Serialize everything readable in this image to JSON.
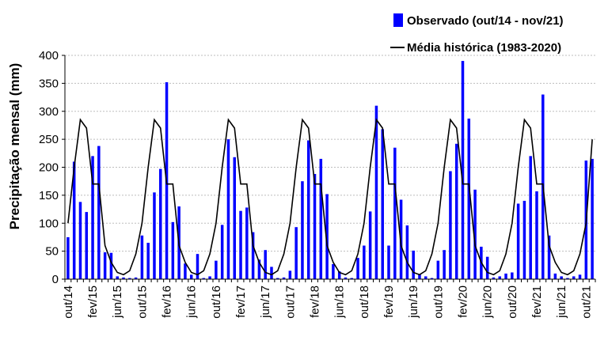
{
  "chart_data": {
    "type": "bar",
    "ylabel": "Precipitação  mensal (mm)",
    "ylim": [
      0,
      400
    ],
    "yticks": [
      0,
      50,
      100,
      150,
      200,
      250,
      300,
      350,
      400
    ],
    "grid": "horizontal dotted",
    "legend_position": "top-right",
    "x_tick_labels": [
      "out/14",
      "fev/15",
      "jun/15",
      "out/15",
      "fev/16",
      "jun/16",
      "out/16",
      "fev/17",
      "jun/17",
      "out/17",
      "fev/18",
      "jun/18",
      "out/18",
      "fev/19",
      "jun/19",
      "out/19",
      "fev/20",
      "jun/20",
      "out/20",
      "fev/21",
      "jun/21",
      "out/21"
    ],
    "series": [
      {
        "name": "Observado (out/14 - nov/21)",
        "kind": "bar",
        "color": "#0000ff",
        "start": "out/14",
        "values": [
          75,
          210,
          138,
          120,
          220,
          238,
          48,
          47,
          5,
          3,
          2,
          3,
          78,
          65,
          155,
          197,
          352,
          102,
          130,
          28,
          8,
          45,
          2,
          5,
          33,
          97,
          250,
          218,
          122,
          128,
          84,
          35,
          52,
          22,
          2,
          3,
          15,
          93,
          175,
          248,
          188,
          215,
          152,
          27,
          14,
          3,
          2,
          38,
          60,
          121,
          310,
          268,
          60,
          235,
          142,
          96,
          51,
          8,
          5,
          2,
          33,
          52,
          193,
          242,
          390,
          287,
          160,
          58,
          40,
          3,
          5,
          10,
          12,
          135,
          140,
          220,
          157,
          330,
          78,
          10,
          5,
          2,
          5,
          8,
          212,
          215
        ]
      },
      {
        "name": "Média histórica (1983-2020)",
        "kind": "line",
        "color": "#000000",
        "start": "out/14",
        "values": [
          100,
          200,
          285,
          270,
          170,
          170,
          60,
          30,
          12,
          8,
          15,
          45,
          100,
          200,
          285,
          270,
          170,
          170,
          60,
          30,
          12,
          8,
          15,
          45,
          100,
          200,
          285,
          270,
          170,
          170,
          60,
          30,
          12,
          8,
          15,
          45,
          100,
          200,
          285,
          270,
          170,
          170,
          60,
          30,
          12,
          8,
          15,
          45,
          100,
          200,
          285,
          270,
          170,
          170,
          60,
          30,
          12,
          8,
          15,
          45,
          100,
          200,
          285,
          270,
          170,
          170,
          60,
          30,
          12,
          8,
          15,
          45,
          100,
          200,
          285,
          270,
          170,
          170,
          60,
          30,
          12,
          8,
          15,
          45,
          100,
          250
        ]
      }
    ]
  }
}
